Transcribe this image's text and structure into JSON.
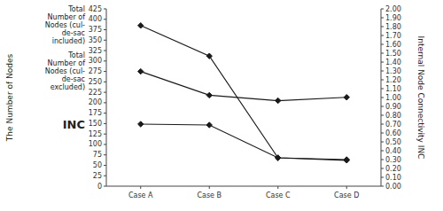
{
  "chart_data": {
    "type": "line",
    "categories": [
      "Case A",
      "Case B",
      "Case C",
      "Case D"
    ],
    "series": [
      {
        "color": "#1a1a1a",
        "marker": "diamond",
        "values": [
          385,
          312,
          68,
          62
        ]
      },
      {
        "color": "#1a1a1a",
        "marker": "diamond",
        "values": [
          275,
          218,
          205,
          213
        ]
      },
      {
        "color": "#1a1a1a",
        "marker": "diamond",
        "axis": "y2",
        "values": [
          0.7,
          0.69,
          0.32,
          0.3
        ]
      }
    ],
    "ylabel": "The Number of Nodes",
    "y2label": "Internal Node Connectivity INC",
    "ylim": [
      0,
      425
    ],
    "yticks": [
      0,
      25,
      50,
      75,
      100,
      125,
      150,
      175,
      200,
      225,
      250,
      275,
      300,
      325,
      350,
      375,
      400,
      425
    ],
    "y2lim": [
      0.0,
      2.0
    ],
    "y2ticks": [
      {
        "value": 0.0,
        "label": "0.00"
      },
      {
        "value": 0.1,
        "label": "0.10"
      },
      {
        "value": 0.2,
        "label": "0.20"
      },
      {
        "value": 0.3,
        "label": "0.30"
      },
      {
        "value": 0.4,
        "label": "0.40"
      },
      {
        "value": 0.5,
        "label": "0.50"
      },
      {
        "value": 0.6,
        "label": "0.60"
      },
      {
        "value": 0.7,
        "label": "0.70"
      },
      {
        "value": 0.8,
        "label": "0.80"
      },
      {
        "value": 0.9,
        "label": "0.90"
      },
      {
        "value": 1.0,
        "label": "1.00"
      },
      {
        "value": 1.1,
        "label": "1.10"
      },
      {
        "value": 1.2,
        "label": "1.20"
      },
      {
        "value": 1.3,
        "label": "1.30"
      },
      {
        "value": 1.4,
        "label": "1.40"
      },
      {
        "value": 1.5,
        "label": "1.50"
      },
      {
        "value": 1.6,
        "label": "1.60"
      },
      {
        "value": 1.7,
        "label": "1.70"
      },
      {
        "value": 1.8,
        "label": "1.80"
      },
      {
        "value": 1.9,
        "label": "1.90"
      },
      {
        "value": 2.0,
        "label": "2.00"
      }
    ],
    "annotations": [
      "Total\nNumber of\nNodes (cul-\nde-sac\nincluded)",
      "Total\nNumber of\nNodes (cul-\nde-sac\nexcluded)",
      "INC"
    ],
    "grid": false
  }
}
